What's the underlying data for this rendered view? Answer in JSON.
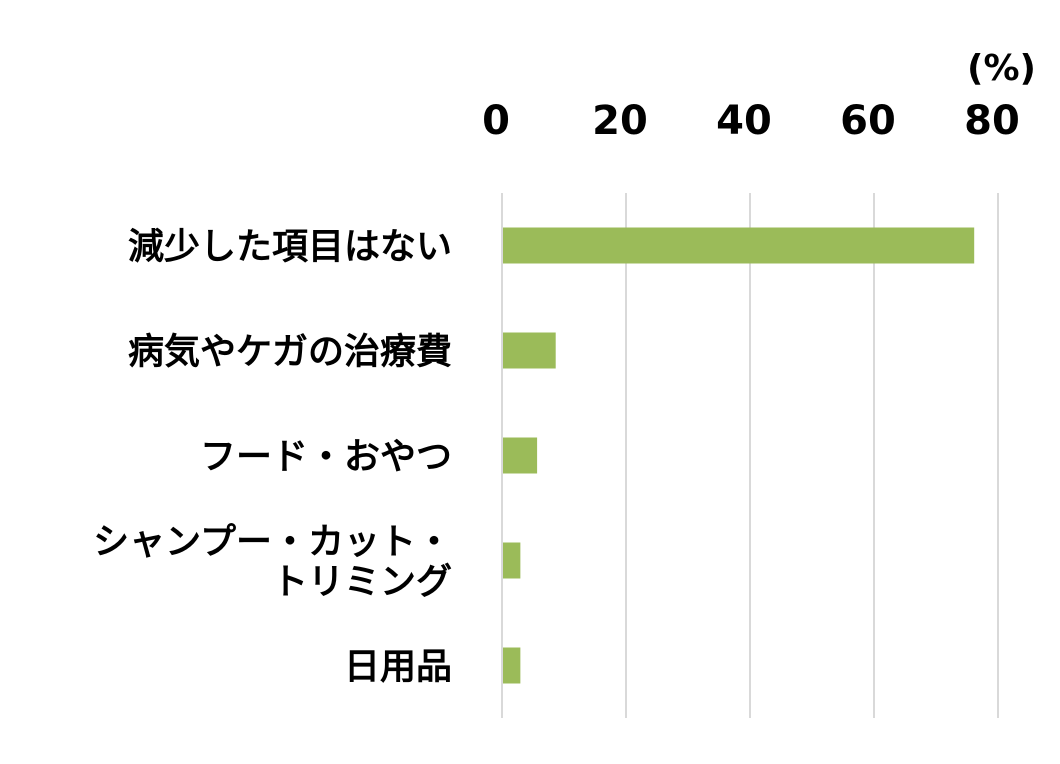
{
  "chart_data": {
    "type": "bar",
    "orientation": "horizontal",
    "unit_label": "(%)",
    "categories": [
      "減少した項目はない",
      "病気やケガの治療費",
      "フード・おやつ",
      "シャンプー・カット・\nトリミング",
      "日用品"
    ],
    "values": [
      76,
      8.5,
      5.5,
      2.8,
      2.8
    ],
    "xlim": [
      0,
      80
    ],
    "ticks": [
      0,
      20,
      40,
      60,
      80
    ],
    "tick_labels": [
      "0",
      "20",
      "40",
      "60",
      "80"
    ],
    "tick_position": "top",
    "grid": true,
    "bar_color": "#9bbb59",
    "grid_color": "#d9d9d9"
  }
}
